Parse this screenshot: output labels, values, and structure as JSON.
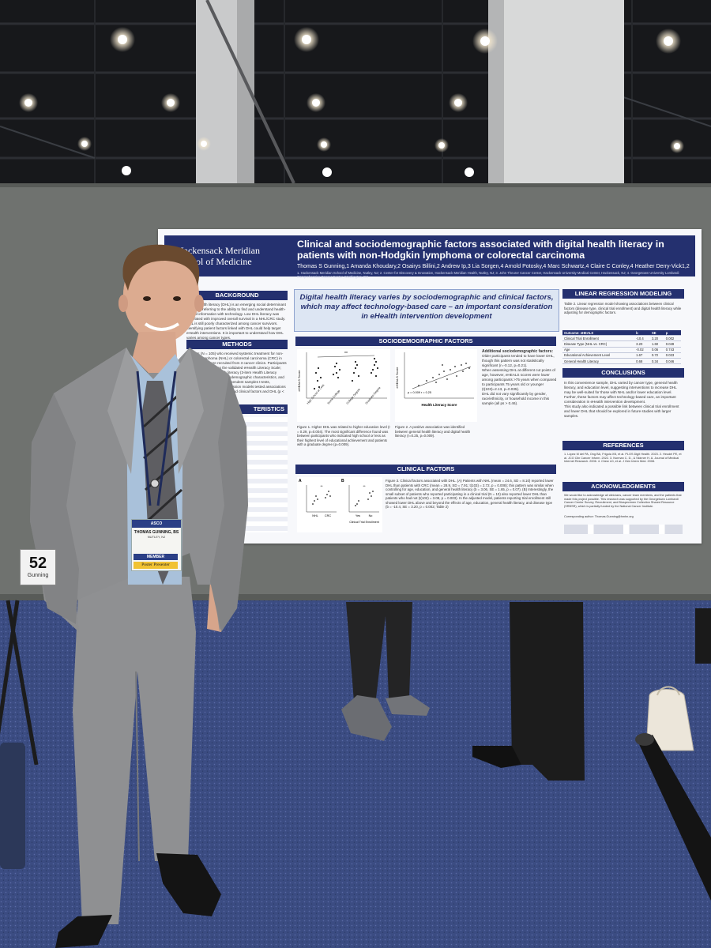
{
  "poster": {
    "logo_line1": "Hackensack Meridian",
    "logo_line2": "School of Medicine",
    "title": "Clinical and sociodemographic factors associated with digital health literacy in patients with non-Hodgkin lymphoma or colorectal carcinoma",
    "authors": "Thomas S Gunning,1 Amanda Khoudary,2 Osairys Billini,2 Andrew Ip,3 Lia Sorgen,4 Arnold Potosky,4 Marc Schwartz,4 Claire C Conley,4 Heather Derry-Vick1,2",
    "affiliations": "1. Hackensack Meridian School of Medicine, Nutley, NJ; 2. Center for Discovery & Innovation, Hackensack Meridian Health, Nutley, NJ; 3. John Theurer Cancer Center, Hackensack University Medical Center, Hackensack, NJ; 4. Georgetown University Lombardi Comprehensive Cancer Center, Washington, DC",
    "headline": "Digital health literacy varies by sociodemographic and clinical factors, which may affect technology-based care – an important consideration in eHealth intervention development",
    "sections": {
      "background": "BACKGROUND",
      "methods": "METHODS",
      "characteristics": "TERISTICS",
      "sociodemographic": "SOCIODEMOGRAPHIC FACTORS",
      "clinical": "CLINICAL FACTORS",
      "linear": "LINEAR REGRESSION MODELING",
      "conclusions": "CONCLUSIONS",
      "references": "REFERENCES",
      "acknowledgments": "ACKNOWLEDGMENTS"
    },
    "fig1_caption": "Figure 1. Higher DHL was related to higher education level (r = 0.29, p=0.004). The most significant difference found was between participants who indicated high school or less as their highest level of educational achievement and patients with a graduate degree (p=0.009).",
    "fig2_caption": "Figure 2. A positive association was identified between general health literacy and digital health literacy (r=0.25, p=0.009).",
    "fig2_stats": "p = 0.009\nr = 0.25",
    "fig2_xlabel": "Health Literacy Score",
    "ehealts_label": "eHEALS Score",
    "fig1_categories": [
      "High School or Less",
      "Some College",
      "College Degree",
      "Graduate Degree"
    ],
    "additional_title": "Additional sociodemographic factors:",
    "additional_bullets": [
      "Older participants tended to have lower DHL, though this pattern was not statistically significant (r=-0.12, p=0.21).",
      "When assessing DHL at different cut points of age, however, eHEALS scores were lower among participants >75 years when compared to participants 75 years old or younger (t(103)=2.13, p=0.035).",
      "DHL did not vary significantly by gender, race/ethnicity, or household income in this sample (all ps > 0.46)."
    ],
    "fig3_caption": "Figure 3. Clinical factors associated with DHL. (A) Patients with NHL (mean = 24.6, SD = 8.10) reported lower DHL than patients with CRC (mean = 28.9, SD = 7.91; t(103) = 2.72, p = 0.008); this pattern was similar when controlling for age, education, and general health literacy (b = 3.06, SE = 1.65, p = 0.07). (B) Interestingly, the small subset of patients who reported participating in a clinical trial (N = 10) also reported lower DHL than patients who had not (t(102) = 3.08, p = 0.003). In the adjusted model, patients reporting trial enrollment still showed lower DHL above and beyond the effects of age, education, general health literacy, and disease type (b = -10.4, SE = 3.20, p = 0.002; Table 2)",
    "fig3_labels": {
      "a": "A",
      "b": "B",
      "nhl": "NHL",
      "crc": "CRC",
      "yes": "Yes",
      "no": "No",
      "trial": "Clinical Trial Enrollment"
    },
    "table2_caption": "Table 2. Linear regression model showing associations between clinical factors (disease type, clinical trial enrollment) and digital health literacy while adjusting for demographic factors.",
    "table2": {
      "header": [
        "Outcome: eHEALS",
        "b",
        "SE",
        "p"
      ],
      "rows": [
        [
          "Clinical Trial Enrollment",
          "-10.4",
          "3.20",
          "0.002"
        ],
        [
          "Disease Type (NHL vs. CRC)",
          "3.20",
          "1.60",
          "0.049"
        ],
        [
          "Age",
          "-0.02",
          "0.06",
          "0.743"
        ],
        [
          "Educational Achievement Level",
          "1.67",
          "0.72",
          "0.023"
        ],
        [
          "General Health Literacy",
          "0.68",
          "0.34",
          "0.046"
        ]
      ]
    },
    "conclusions_bullets": [
      "In this convenience sample, DHL varied by cancer type, general health literacy, and education level, suggesting interventions to increase DHL may be well-suited for those with NHL and/or lower education level.",
      "Further, these factors may affect technology-based care, an important consideration in eHealth intervention development.",
      "This study also indicated a possible link between clinical trial enrollment and lower DHL that should be explored in future studies with larger samples."
    ],
    "references": "1. López M del PA, Ong BA, Frigola XB, et al. PLOS Digit Health. 2023. 2. Heudel PE, et al. JCO Clin Cancer Inform. 2022. 3. Norman C. D., & Skinner H. A. Journal of Medical Internet Research. 2006. 4. Chew LD, et al. J Gen Intern Med. 2008.",
    "ack_text": "We would like to acknowledge all clinicians, cancer team members, and the patients that made this project possible. This research was supported by the Georgetown Lombardi Cancer Center Survey, Recruitment, and Biospecimen Collection Shared Resource (SRBSR), which is partially funded by the National Cancer Institute.",
    "contact": "Corresponding author: Thomas.Gunning@hmhn.org",
    "background_text": "Digital health literacy (DHL) is an emerging social determinant of health, referring to the ability to find and understand health-related information with technology. Low DHL literacy was correlated with improved overall survival in a NHL/CRC study. DHL is still poorly characterized among cancer survivors. Identifying patient factors linked with DHL could help target eHealth interventions. It is important to understand how DHL varies among cancer types.",
    "methods_text": "Patients (N = 105) who received systemic treatment for non-Hodgkin lymphoma (NHL) or colorectal carcinoma (CRC) in the past year were recruited from 3 cancer clinics. Participants self-reported DHL (on the validated eHealth Literacy Scale; eHEALS), general health literacy (3-item Health Literacy Screening questions), sociodemographic characteristics, and clinical characteristics. Independent samples t-tests, correlations, and linear regression models tested associations between sociodemographic and clinical factors and DHL (p < 0.05)."
  },
  "booth": {
    "number": "52",
    "presenter": "Gunning"
  },
  "name_badge": {
    "org": "ASCO",
    "name": "THOMAS GUNNING, BS",
    "city": "NUTLEY, NJ",
    "member": "MEMBER",
    "role": "Poster Presenter"
  },
  "colors": {
    "poster_navy": "#24306f",
    "board_gray": "#6f726f",
    "carpet": "#3c4f86",
    "suit": "#8b8b8d"
  }
}
